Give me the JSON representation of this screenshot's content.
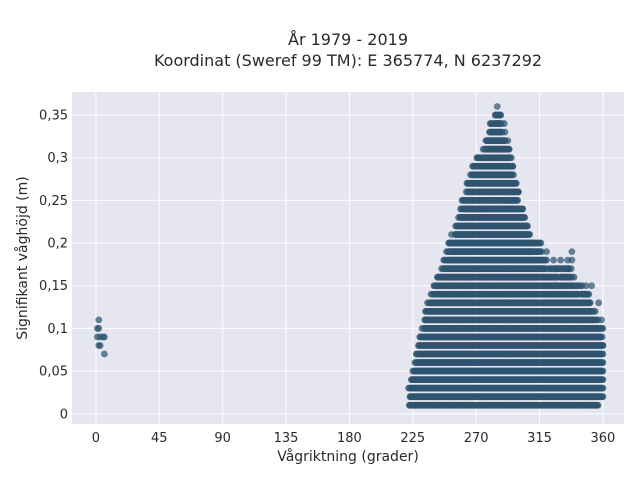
{
  "chart_data": {
    "type": "scatter",
    "title_line1": "År 1979 - 2019",
    "title_line2": "Koordinat (Sweref 99 TM): E 365774, N 6237292",
    "xlabel": "Vågriktning (grader)",
    "ylabel": "Signifikant våghöjd (m)",
    "xlim": [
      -17,
      375
    ],
    "ylim": [
      -0.012,
      0.377
    ],
    "x_ticks": [
      0,
      45,
      90,
      135,
      180,
      225,
      270,
      315,
      360
    ],
    "x_tick_labels": [
      "0",
      "45",
      "90",
      "135",
      "180",
      "225",
      "270",
      "315",
      "360"
    ],
    "y_ticks": [
      0,
      0.05,
      0.1,
      0.15,
      0.2,
      0.25,
      0.3,
      0.35
    ],
    "y_tick_labels": [
      "0",
      "0,05",
      "0,1",
      "0,15",
      "0,2",
      "0,25",
      "0,3",
      "0,35"
    ],
    "grid": true,
    "colors": {
      "plot_bg": "#e5e6f0",
      "grid": "#ffffff",
      "marker": "#2f5570"
    },
    "y_step": 0.01,
    "cluster_envelope": [
      {
        "x": 222,
        "ymax": 0.03
      },
      {
        "x": 225,
        "ymax": 0.05
      },
      {
        "x": 230,
        "ymax": 0.09
      },
      {
        "x": 235,
        "ymax": 0.13
      },
      {
        "x": 240,
        "ymax": 0.15
      },
      {
        "x": 245,
        "ymax": 0.17
      },
      {
        "x": 250,
        "ymax": 0.2
      },
      {
        "x": 255,
        "ymax": 0.22
      },
      {
        "x": 260,
        "ymax": 0.25
      },
      {
        "x": 265,
        "ymax": 0.28
      },
      {
        "x": 270,
        "ymax": 0.3
      },
      {
        "x": 275,
        "ymax": 0.31
      },
      {
        "x": 280,
        "ymax": 0.34
      },
      {
        "x": 285,
        "ymax": 0.36
      },
      {
        "x": 290,
        "ymax": 0.34
      },
      {
        "x": 295,
        "ymax": 0.3
      },
      {
        "x": 300,
        "ymax": 0.26
      },
      {
        "x": 305,
        "ymax": 0.23
      },
      {
        "x": 310,
        "ymax": 0.2
      },
      {
        "x": 315,
        "ymax": 0.2
      },
      {
        "x": 320,
        "ymax": 0.18
      },
      {
        "x": 325,
        "ymax": 0.17
      },
      {
        "x": 330,
        "ymax": 0.17
      },
      {
        "x": 335,
        "ymax": 0.18
      },
      {
        "x": 340,
        "ymax": 0.16
      },
      {
        "x": 345,
        "ymax": 0.15
      },
      {
        "x": 350,
        "ymax": 0.14
      },
      {
        "x": 355,
        "ymax": 0.12
      },
      {
        "x": 360,
        "ymax": 0.1
      }
    ],
    "extra_points": [
      {
        "x": 270,
        "y": 0.29
      },
      {
        "x": 275,
        "y": 0.3
      },
      {
        "x": 296,
        "y": 0.29
      },
      {
        "x": 298,
        "y": 0.27
      },
      {
        "x": 300,
        "y": 0.26
      },
      {
        "x": 303,
        "y": 0.24
      },
      {
        "x": 310,
        "y": 0.2
      },
      {
        "x": 316,
        "y": 0.2
      },
      {
        "x": 320,
        "y": 0.19
      },
      {
        "x": 325,
        "y": 0.18
      },
      {
        "x": 330,
        "y": 0.18
      },
      {
        "x": 338,
        "y": 0.19
      },
      {
        "x": 338,
        "y": 0.18
      },
      {
        "x": 348,
        "y": 0.15
      },
      {
        "x": 352,
        "y": 0.15
      },
      {
        "x": 357,
        "y": 0.13
      },
      {
        "x": 359,
        "y": 0.11
      },
      {
        "x": 360,
        "y": 0.08
      },
      {
        "x": 225,
        "y": 0.01
      },
      {
        "x": 330,
        "y": 0.01
      },
      {
        "x": 335,
        "y": 0.01
      },
      {
        "x": 340,
        "y": 0.01
      },
      {
        "x": 345,
        "y": 0.01
      }
    ],
    "near_zero_points": [
      {
        "x": 2,
        "y": 0.11
      },
      {
        "x": 1,
        "y": 0.1
      },
      {
        "x": 2,
        "y": 0.1
      },
      {
        "x": 1,
        "y": 0.09
      },
      {
        "x": 3,
        "y": 0.09
      },
      {
        "x": 5,
        "y": 0.09
      },
      {
        "x": 6,
        "y": 0.09
      },
      {
        "x": 2,
        "y": 0.08
      },
      {
        "x": 3,
        "y": 0.08
      },
      {
        "x": 6,
        "y": 0.07
      }
    ]
  }
}
